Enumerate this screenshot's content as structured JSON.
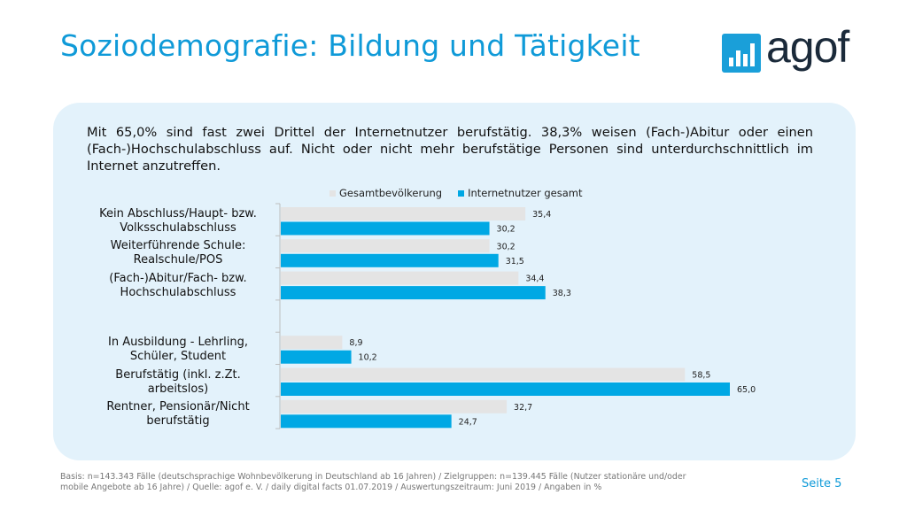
{
  "header": {
    "title": "Soziodemografie: Bildung und Tätigkeit",
    "logo_text": "agof"
  },
  "intro_text": "Mit 65,0% sind fast zwei Drittel der Internetnutzer berufstätig. 38,3% weisen (Fach-)Abitur oder einen (Fach-)Hochschulabschluss auf. Nicht oder nicht mehr berufstätige Personen sind unterdurchschnittlich im Internet anzutreffen.",
  "legend": {
    "gesamt": "Gesamtbevölkerung",
    "internet": "Internetnutzer gesamt"
  },
  "colors": {
    "accent": "#0f9ad8",
    "gesamt_bar": "#e4e4e4",
    "internet_bar": "#00a8e4",
    "panel": "#e3f2fb"
  },
  "chart_data": {
    "type": "bar",
    "orientation": "horizontal",
    "categories": [
      "Kein Abschluss/Haupt- bzw. Volksschulabschluss",
      "Weiterführende Schule: Realschule/POS",
      "(Fach-)Abitur/Fach- bzw. Hochschulabschluss",
      "",
      "In Ausbildung - Lehrling, Schüler, Student",
      "Berufstätig (inkl. z.Zt. arbeitslos)",
      "Rentner, Pensionär/Nicht berufstätig"
    ],
    "series": [
      {
        "name": "Gesamtbevölkerung",
        "values": [
          35.4,
          30.2,
          34.4,
          null,
          8.9,
          58.5,
          32.7
        ]
      },
      {
        "name": "Internetnutzer gesamt",
        "values": [
          30.2,
          31.5,
          38.3,
          null,
          10.2,
          65.0,
          24.7
        ]
      }
    ],
    "value_labels": [
      [
        "35,4",
        "30,2",
        "34,4",
        "",
        "8,9",
        "58,5",
        "32,7"
      ],
      [
        "30,2",
        "31,5",
        "38,3",
        "",
        "10,2",
        "65,0",
        "24,7"
      ]
    ],
    "xlim": [
      0,
      70
    ],
    "legend_position": "top"
  },
  "footer": {
    "source": "Basis: n=143.343 Fälle (deutschsprachige Wohnbevölkerung in Deutschland ab 16 Jahren) / Zielgruppen: n=139.445 Fälle (Nutzer stationäre und/oder mobile Angebote ab 16 Jahre) / Quelle: agof e. V. / daily digital facts 01.07.2019 / Auswertungszeitraum: Juni 2019 / Angaben in %",
    "page": "Seite 5"
  }
}
